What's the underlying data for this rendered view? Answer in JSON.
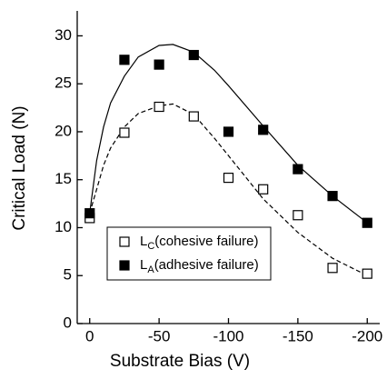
{
  "chart_data": {
    "type": "scatter",
    "x_label": "Substrate Bias (V)",
    "y_label": "Critical Load (N)",
    "xlim": [
      9,
      -209
    ],
    "xticks": [
      0,
      -50,
      -100,
      -150,
      -200
    ],
    "ylim": [
      0,
      32.6
    ],
    "yticks": [
      0,
      5,
      10,
      15,
      20,
      25,
      30
    ],
    "legend": "lower-left",
    "series": [
      {
        "name": "LC(cohesive failure)",
        "marker": "open-square",
        "color": "#000000",
        "x": [
          0,
          -25,
          -50,
          -75,
          -100,
          -125,
          -150,
          -175,
          -200
        ],
        "values": [
          11.0,
          19.9,
          22.6,
          21.6,
          15.2,
          14.0,
          11.3,
          5.8,
          5.2
        ],
        "curve": {
          "dash": true,
          "x": [
            0,
            -5,
            -10,
            -15,
            -25,
            -35,
            -50,
            -60,
            -75,
            -90,
            -100,
            -125,
            -150,
            -175,
            -200
          ],
          "values": [
            11.5,
            14.0,
            16.5,
            18.3,
            20.5,
            21.9,
            22.7,
            22.9,
            21.8,
            19.3,
            17.5,
            13.0,
            9.5,
            6.8,
            5.0
          ]
        }
      },
      {
        "name": "LA(adhesive failure)",
        "marker": "filled-square",
        "color": "#000000",
        "x": [
          0,
          -25,
          -50,
          -75,
          -100,
          -125,
          -150,
          -175,
          -200
        ],
        "values": [
          11.5,
          27.5,
          27.0,
          28.0,
          20.0,
          20.2,
          16.1,
          13.3,
          10.5
        ],
        "curve": {
          "dash": false,
          "x": [
            0,
            -5,
            -10,
            -15,
            -25,
            -35,
            -50,
            -60,
            -75,
            -90,
            -100,
            -125,
            -150,
            -175,
            -200
          ],
          "values": [
            11.5,
            17.0,
            20.5,
            23.0,
            25.8,
            27.8,
            29.0,
            29.1,
            28.3,
            26.4,
            24.8,
            20.6,
            16.5,
            13.3,
            10.5
          ]
        }
      }
    ]
  }
}
